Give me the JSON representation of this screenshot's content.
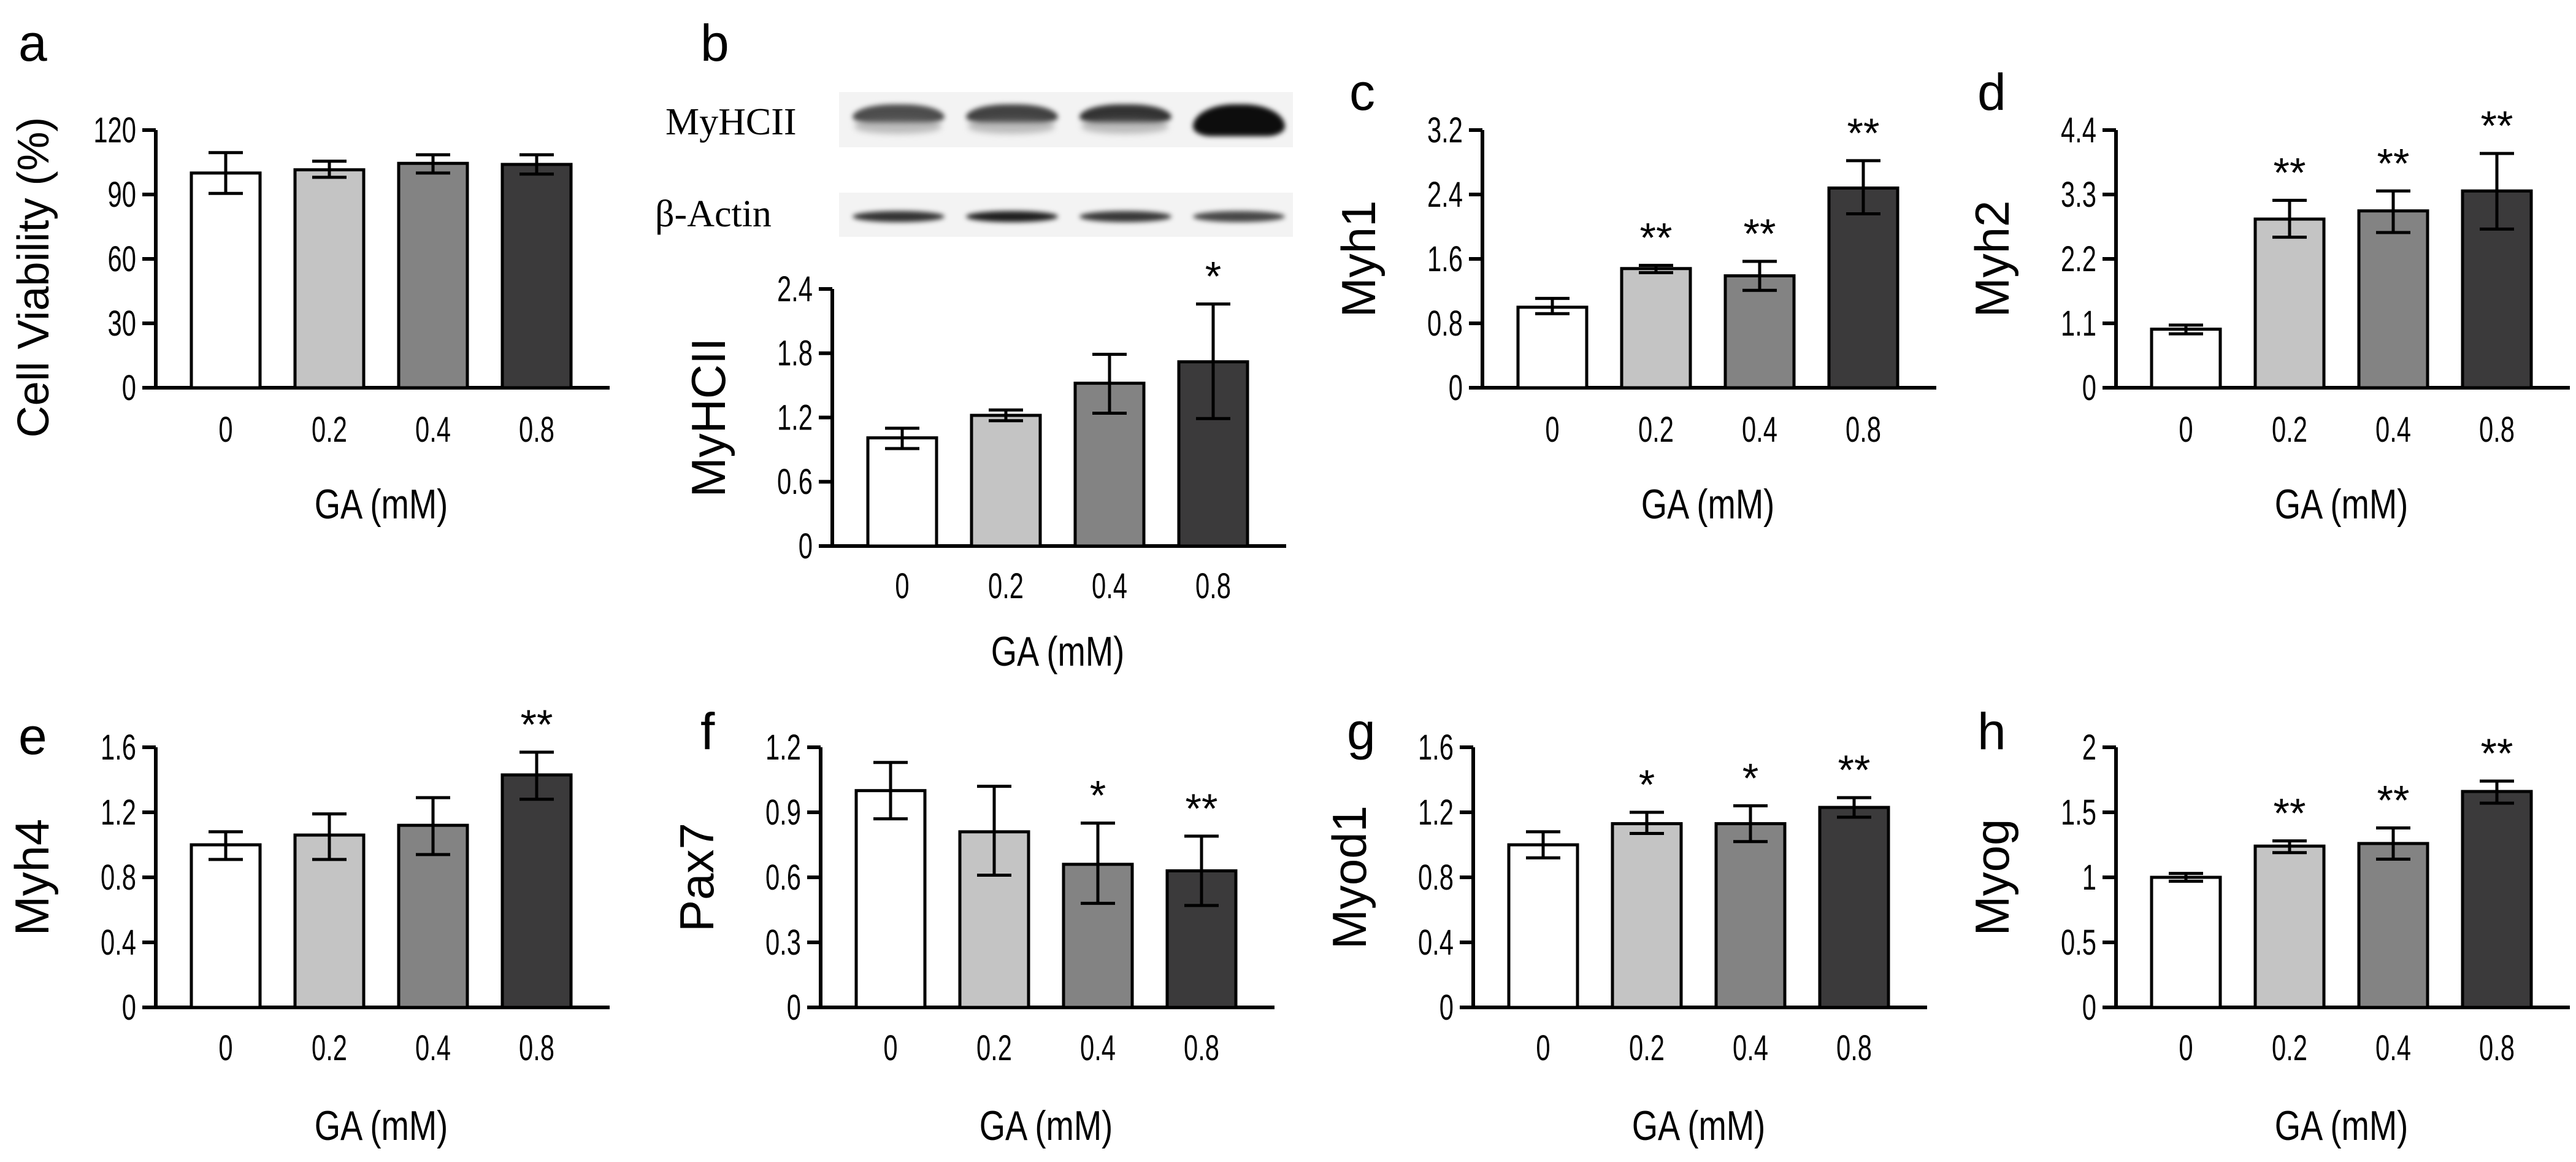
{
  "figure": {
    "panels_letters": [
      "a",
      "b",
      "c",
      "d",
      "e",
      "f",
      "g",
      "h"
    ]
  },
  "blot": {
    "rows": [
      {
        "label": "MyHCII",
        "band_intensity": [
          0.7,
          0.74,
          0.8,
          0.95
        ],
        "band_shape": "arc-thick"
      },
      {
        "label": "β-Actin",
        "band_intensity": [
          0.8,
          0.88,
          0.78,
          0.72
        ],
        "band_shape": "thin"
      }
    ]
  },
  "colors": {
    "bars": [
      "#ffffff",
      "#c4c4c4",
      "#838383",
      "#3b3a3b"
    ],
    "outline": "#000000"
  },
  "chart_data": [
    {
      "panel": "a",
      "type": "bar",
      "title": "",
      "categories": [
        "0",
        "0.2",
        "0.4",
        "0.8"
      ],
      "values": [
        100,
        101.5,
        104.5,
        104
      ],
      "error_low": [
        90.5,
        98,
        100,
        99.5
      ],
      "error_high": [
        109.5,
        105.5,
        108.5,
        108.5
      ],
      "significance": [
        "",
        "",
        "",
        ""
      ],
      "xlabel": "GA (mM)",
      "ylabel": "Cell Viability (%)",
      "ylim": [
        0,
        120
      ],
      "yticks": [
        "0",
        "30",
        "60",
        "90",
        "120"
      ],
      "grid": false
    },
    {
      "panel": "b",
      "type": "bar",
      "title": "",
      "categories": [
        "0",
        "0.2",
        "0.4",
        "0.8"
      ],
      "values": [
        1.01,
        1.22,
        1.52,
        1.72
      ],
      "error_low": [
        0.91,
        1.17,
        1.24,
        1.19
      ],
      "error_high": [
        1.1,
        1.27,
        1.79,
        2.26
      ],
      "significance": [
        "",
        "",
        "",
        "*"
      ],
      "xlabel": "GA (mM)",
      "ylabel": "MyHCII",
      "ylim": [
        0,
        2.4
      ],
      "yticks": [
        "0",
        "0.6",
        "1.2",
        "1.8",
        "2.4"
      ],
      "grid": false
    },
    {
      "panel": "c",
      "type": "bar",
      "title": "",
      "categories": [
        "0",
        "0.2",
        "0.4",
        "0.8"
      ],
      "values": [
        1.0,
        1.48,
        1.39,
        2.48
      ],
      "error_low": [
        0.92,
        1.43,
        1.21,
        2.16
      ],
      "error_high": [
        1.11,
        1.52,
        1.57,
        2.82
      ],
      "significance": [
        "",
        "**",
        "**",
        "**"
      ],
      "xlabel": "GA (mM)",
      "ylabel": "Myh1",
      "ylim": [
        0,
        3.2
      ],
      "yticks": [
        "0",
        "0.8",
        "1.6",
        "2.4",
        "3.2"
      ],
      "grid": false
    },
    {
      "panel": "d",
      "type": "bar",
      "title": "",
      "categories": [
        "0",
        "0.2",
        "0.4",
        "0.8"
      ],
      "values": [
        1.0,
        2.88,
        3.02,
        3.36
      ],
      "error_low": [
        0.92,
        2.57,
        2.65,
        2.71
      ],
      "error_high": [
        1.07,
        3.2,
        3.36,
        4.0
      ],
      "significance": [
        "",
        "**",
        "**",
        "**"
      ],
      "xlabel": "GA (mM)",
      "ylabel": "Myh2",
      "ylim": [
        0,
        4.4
      ],
      "yticks": [
        "0",
        "1.1",
        "2.2",
        "3.3",
        "4.4"
      ],
      "grid": false
    },
    {
      "panel": "e",
      "type": "bar",
      "title": "",
      "categories": [
        "0",
        "0.2",
        "0.4",
        "0.8"
      ],
      "values": [
        1.0,
        1.06,
        1.12,
        1.43
      ],
      "error_low": [
        0.91,
        0.91,
        0.94,
        1.28
      ],
      "error_high": [
        1.08,
        1.19,
        1.29,
        1.57
      ],
      "significance": [
        "",
        "",
        "",
        "**"
      ],
      "xlabel": "GA (mM)",
      "ylabel": "Myh4",
      "ylim": [
        0,
        1.6
      ],
      "yticks": [
        "0",
        "0.4",
        "0.8",
        "1.2",
        "1.6"
      ],
      "grid": false
    },
    {
      "panel": "f",
      "type": "bar",
      "title": "",
      "categories": [
        "0",
        "0.2",
        "0.4",
        "0.8"
      ],
      "values": [
        1.0,
        0.81,
        0.66,
        0.63
      ],
      "error_low": [
        0.87,
        0.61,
        0.48,
        0.47
      ],
      "error_high": [
        1.13,
        1.02,
        0.85,
        0.79
      ],
      "significance": [
        "",
        "",
        "*",
        "**"
      ],
      "xlabel": "GA (mM)",
      "ylabel": "Pax7",
      "ylim": [
        0,
        1.2
      ],
      "yticks": [
        "0",
        "0.3",
        "0.6",
        "0.9",
        "1.2"
      ],
      "grid": false
    },
    {
      "panel": "g",
      "type": "bar",
      "title": "",
      "categories": [
        "0",
        "0.2",
        "0.4",
        "0.8"
      ],
      "values": [
        1.0,
        1.13,
        1.13,
        1.23
      ],
      "error_low": [
        0.92,
        1.07,
        1.02,
        1.17
      ],
      "error_high": [
        1.08,
        1.2,
        1.24,
        1.29
      ],
      "significance": [
        "",
        "*",
        "*",
        "**"
      ],
      "xlabel": "GA (mM)",
      "ylabel": "Myod1",
      "ylim": [
        0,
        1.6
      ],
      "yticks": [
        "0",
        "0.4",
        "0.8",
        "1.2",
        "1.6"
      ],
      "grid": false
    },
    {
      "panel": "h",
      "type": "bar",
      "title": "",
      "categories": [
        "0",
        "0.2",
        "0.4",
        "0.8"
      ],
      "values": [
        1.0,
        1.24,
        1.26,
        1.66
      ],
      "error_low": [
        0.97,
        1.19,
        1.14,
        1.57
      ],
      "error_high": [
        1.03,
        1.28,
        1.38,
        1.74
      ],
      "significance": [
        "",
        "**",
        "**",
        "**"
      ],
      "xlabel": "GA (mM)",
      "ylabel": "Myog",
      "ylim": [
        0,
        2
      ],
      "yticks": [
        "0",
        "0.5",
        "1",
        "1.5",
        "2"
      ],
      "grid": false
    }
  ]
}
